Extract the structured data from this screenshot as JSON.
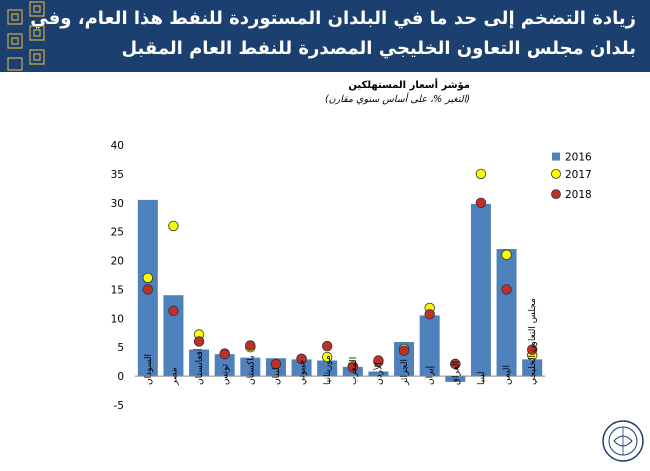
{
  "header": {
    "title_line1": "زيادة التضخم إلى حد ما في البلدان المستوردة للنفط هذا العام، وفي",
    "title_line2": "بلدان مجلس التعاون الخليجي المصدرة للنفط العام المقبل"
  },
  "colors": {
    "banner": "#1b3f6e",
    "bar": "#4f81bd",
    "s2017": "#ffff00",
    "s2018": "#c0302a"
  },
  "chart_data": {
    "type": "bar",
    "title": "مؤشر أسعار المستهلكين",
    "subtitle": "(التغير %، على أساس سنوي مقارن)",
    "xlabel": "",
    "ylabel": "",
    "ylim": [
      -5,
      40
    ],
    "yticks": [
      -5,
      0,
      5,
      10,
      15,
      20,
      25,
      30,
      35,
      40
    ],
    "categories": [
      "السودان",
      "مصر",
      "أفغانستان",
      "تونس",
      "باكستان",
      "لبنان",
      "جيبوتي",
      "موريتانيا",
      "المغرب",
      "الأردن",
      "الجزائر",
      "إيران",
      "العراق",
      "ليبيا",
      "اليمن",
      "مجلس التعاون الخليجي"
    ],
    "series": [
      {
        "name": "2016",
        "type": "bar",
        "values": [
          30.5,
          14,
          4.6,
          3.8,
          3.2,
          3.1,
          2.9,
          2.7,
          1.6,
          0.8,
          5.9,
          10.5,
          -1,
          29.8,
          22,
          2.9
        ]
      },
      {
        "name": "2017",
        "type": "scatter",
        "values": [
          17,
          26,
          7.2,
          3.9,
          5,
          2.1,
          3,
          3.3,
          1.7,
          2.5,
          4.7,
          11.8,
          2.1,
          35,
          21,
          3.6
        ]
      },
      {
        "name": "2018",
        "type": "scatter",
        "values": [
          15,
          11.3,
          6,
          3.8,
          5.3,
          2.1,
          3,
          5.2,
          1.5,
          2.7,
          4.4,
          10.7,
          2.1,
          30,
          15,
          4.6
        ]
      }
    ],
    "legend": "right"
  }
}
